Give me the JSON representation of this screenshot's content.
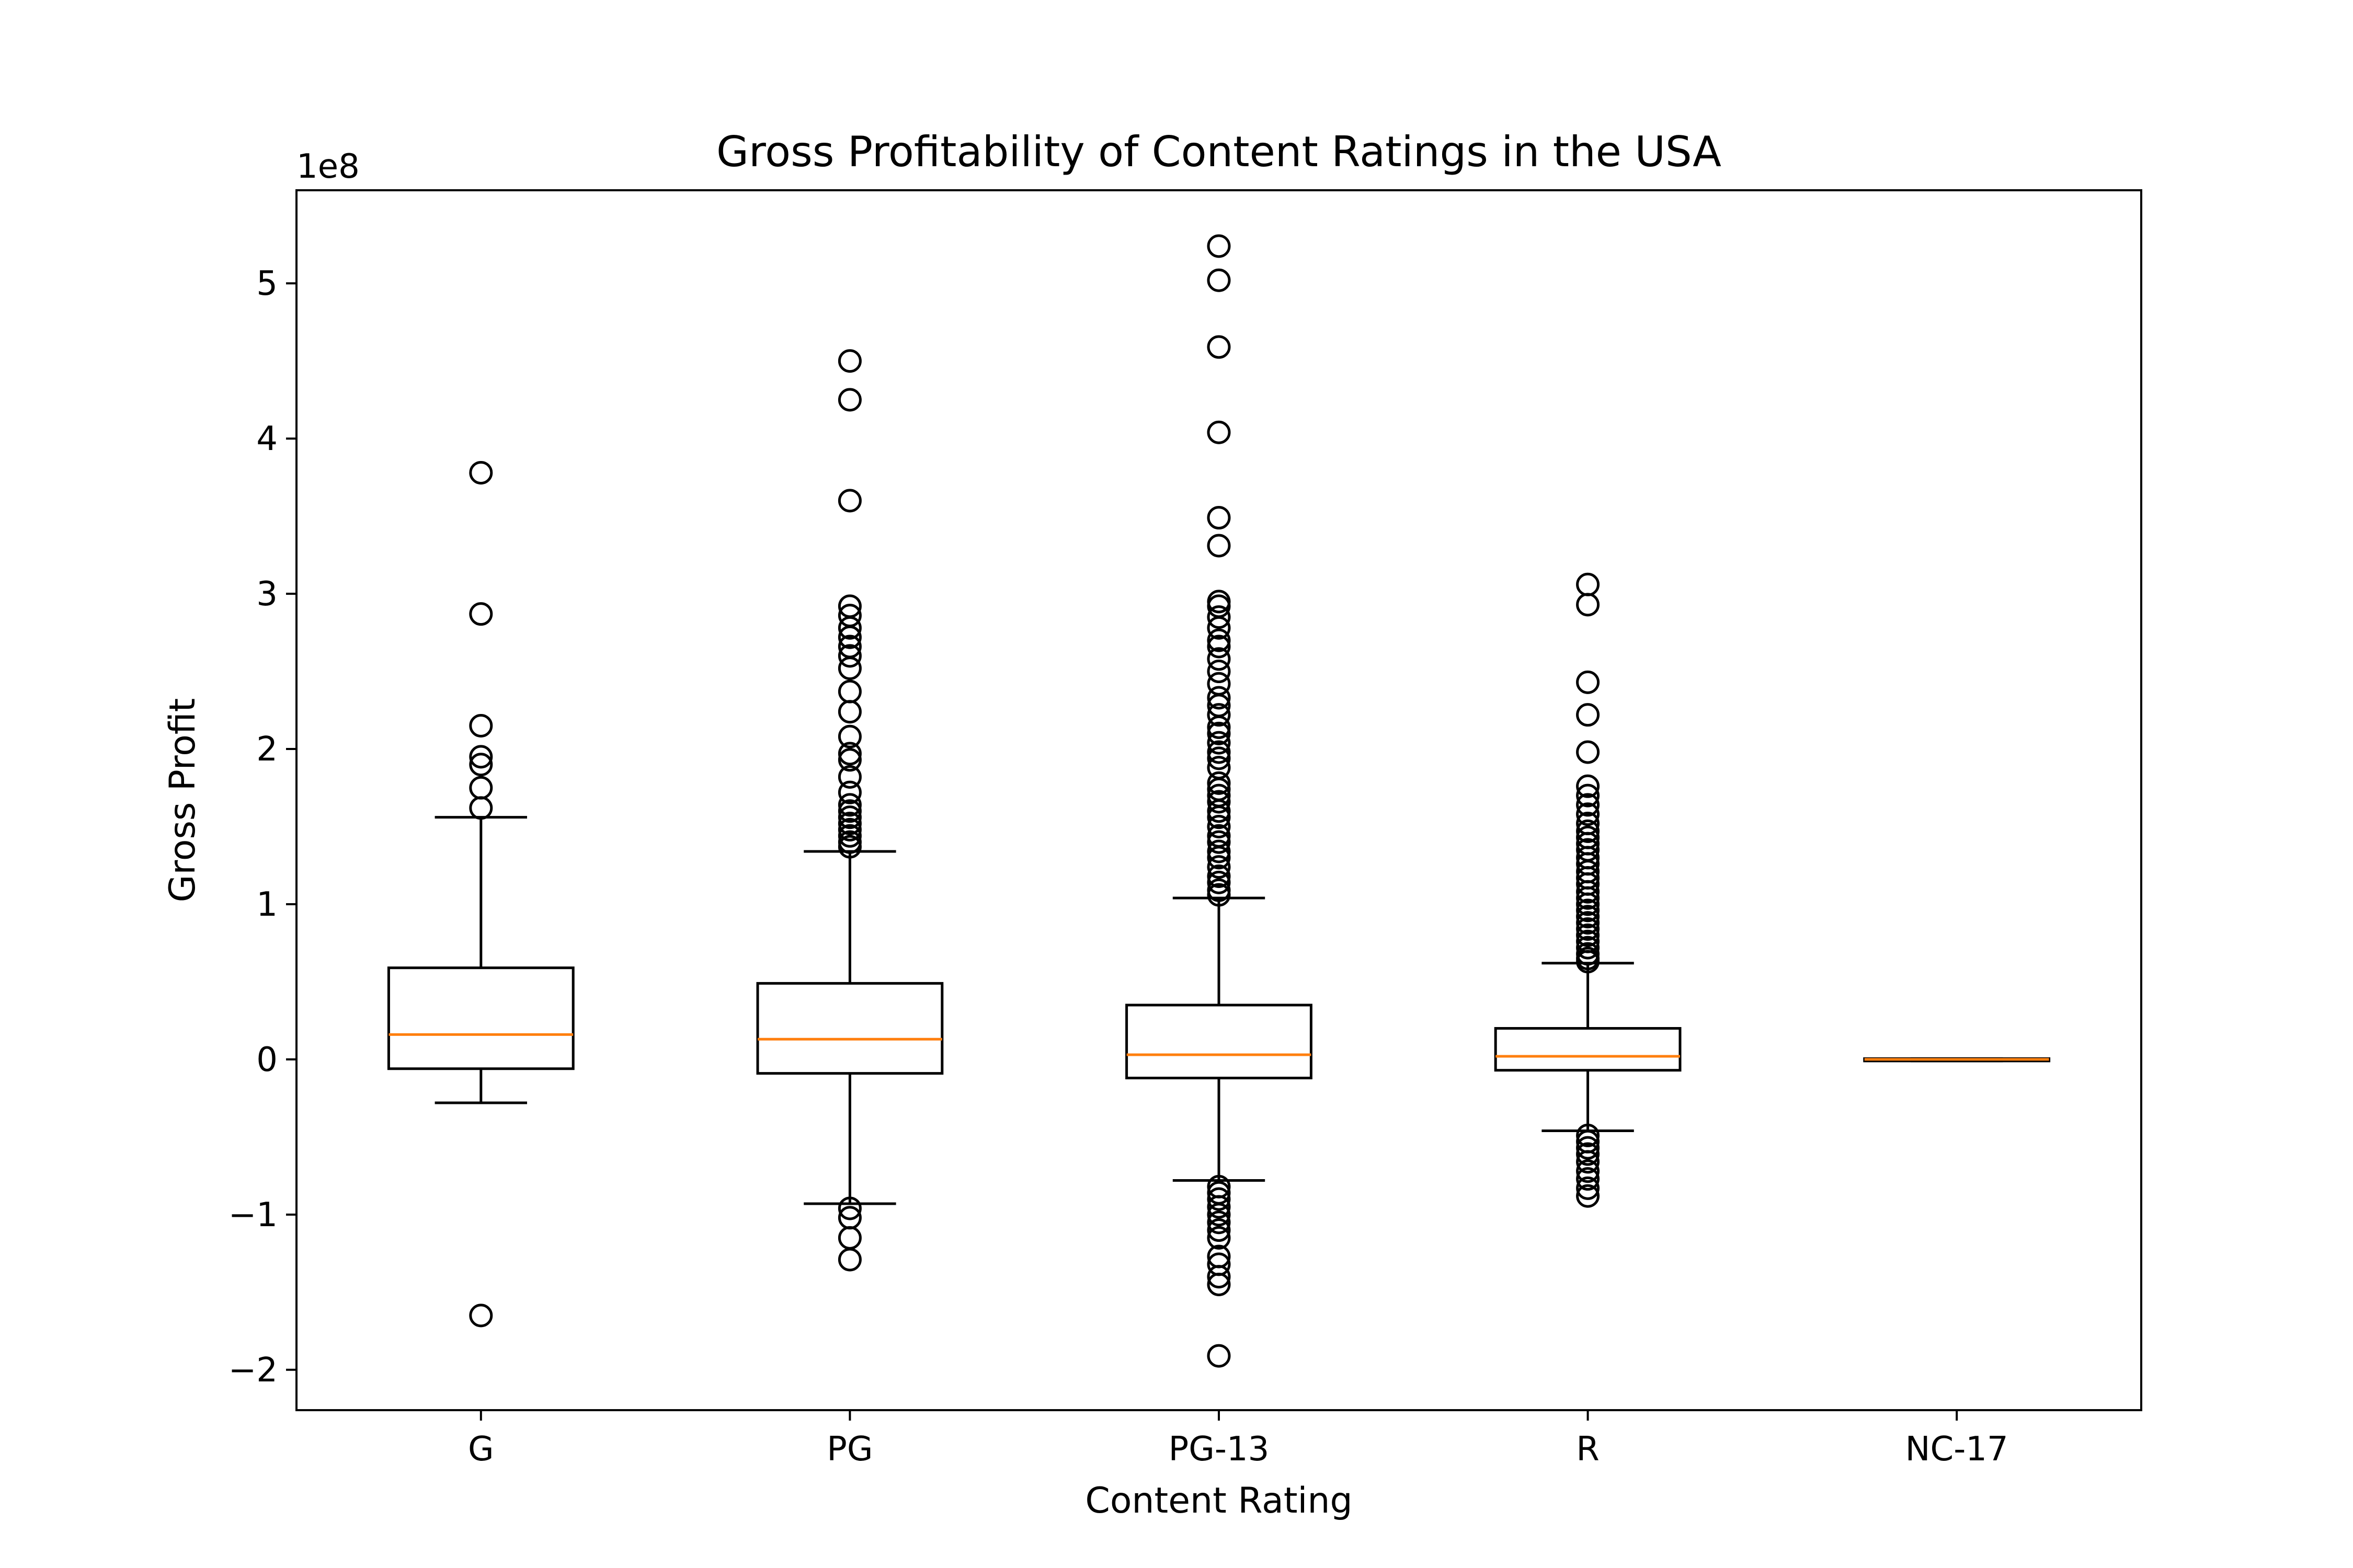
{
  "chart_data": {
    "type": "boxplot",
    "title": "Gross Profitability of Content Ratings in the USA",
    "xlabel": "Content Rating",
    "ylabel": "Gross Profit",
    "y_offset_label": "1e8",
    "y_scale_factor": 100000000,
    "ylim": [
      -2.26,
      5.6
    ],
    "yticks": [
      -2,
      -1,
      0,
      1,
      2,
      3,
      4,
      5
    ],
    "ytick_labels": [
      "−2",
      "−1",
      "0",
      "1",
      "2",
      "3",
      "4",
      "5"
    ],
    "categories": [
      "G",
      "PG",
      "PG-13",
      "R",
      "NC-17"
    ],
    "grid": false,
    "median_color": "#ff7f0e",
    "box_color": "#000000",
    "boxes": [
      {
        "name": "G",
        "whisker_low": -0.28,
        "q1": -0.06,
        "median": 0.16,
        "q3": 0.59,
        "whisker_high": 1.56,
        "outliers": [
          3.78,
          2.87,
          2.15,
          1.95,
          1.9,
          1.75,
          1.62,
          -1.65
        ]
      },
      {
        "name": "PG",
        "whisker_low": -0.93,
        "q1": -0.09,
        "median": 0.13,
        "q3": 0.49,
        "whisker_high": 1.34,
        "outliers": [
          4.5,
          4.25,
          3.6,
          2.92,
          2.86,
          2.78,
          2.72,
          2.66,
          2.6,
          2.52,
          2.37,
          2.24,
          2.08,
          1.97,
          1.93,
          1.82,
          1.72,
          1.64,
          1.6,
          1.56,
          1.52,
          1.48,
          1.44,
          1.4,
          1.37,
          -0.96,
          -1.02,
          -1.15,
          -1.29
        ]
      },
      {
        "name": "PG-13",
        "whisker_low": -0.78,
        "q1": -0.12,
        "median": 0.03,
        "q3": 0.35,
        "whisker_high": 1.04,
        "outliers": [
          5.24,
          5.02,
          4.59,
          4.04,
          3.49,
          3.31,
          2.95,
          2.92,
          2.85,
          2.78,
          2.7,
          2.66,
          2.58,
          2.5,
          2.42,
          2.33,
          2.28,
          2.22,
          2.14,
          2.1,
          2.04,
          1.98,
          1.94,
          1.88,
          1.78,
          1.74,
          1.7,
          1.66,
          1.6,
          1.56,
          1.5,
          1.44,
          1.4,
          1.34,
          1.3,
          1.24,
          1.18,
          1.14,
          1.09,
          1.06,
          -0.82,
          -0.86,
          -0.9,
          -0.95,
          -1.0,
          -1.05,
          -1.1,
          -1.15,
          -1.27,
          -1.32,
          -1.4,
          -1.45,
          -1.91
        ]
      },
      {
        "name": "R",
        "whisker_low": -0.46,
        "q1": -0.07,
        "median": 0.02,
        "q3": 0.2,
        "whisker_high": 0.62,
        "outliers": [
          3.06,
          2.93,
          2.43,
          2.22,
          1.98,
          1.76,
          1.7,
          1.64,
          1.58,
          1.52,
          1.47,
          1.43,
          1.39,
          1.35,
          1.3,
          1.26,
          1.21,
          1.17,
          1.13,
          1.08,
          1.04,
          1.0,
          0.96,
          0.92,
          0.88,
          0.84,
          0.8,
          0.76,
          0.72,
          0.68,
          0.65,
          0.63,
          -0.49,
          -0.53,
          -0.57,
          -0.61,
          -0.66,
          -0.72,
          -0.77,
          -0.83,
          -0.88
        ]
      },
      {
        "name": "NC-17",
        "whisker_low": -0.01,
        "q1": -0.01,
        "median": 0.0,
        "q3": 0.005,
        "whisker_high": 0.005,
        "outliers": []
      }
    ]
  }
}
